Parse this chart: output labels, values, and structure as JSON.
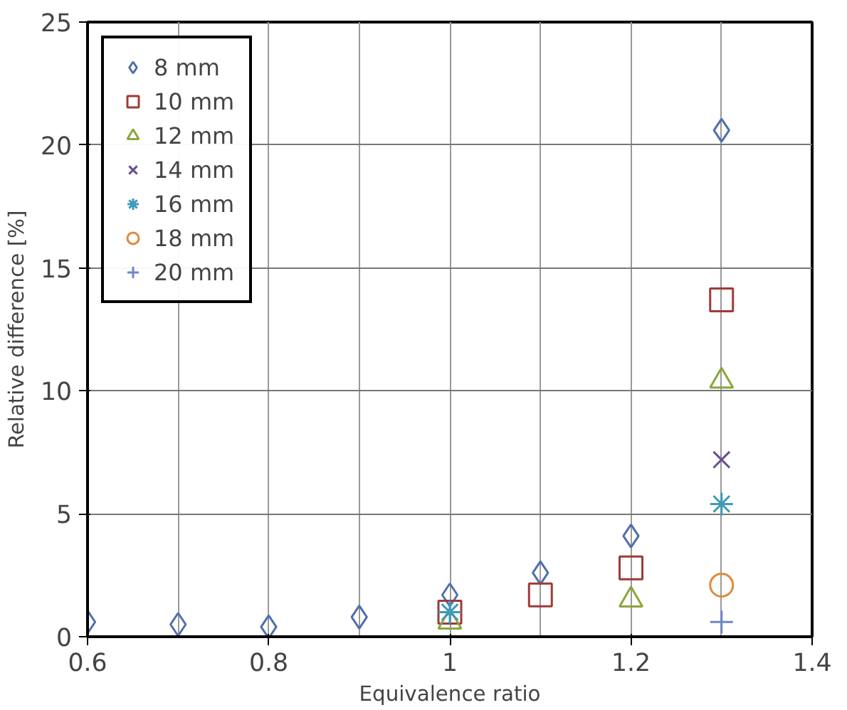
{
  "chart_data": {
    "type": "scatter",
    "xlabel": "Equivalence ratio",
    "ylabel": "Relative difference [%]",
    "xlim": [
      0.6,
      1.4
    ],
    "ylim": [
      0,
      25
    ],
    "xticks": [
      0.6,
      0.8,
      1,
      1.2,
      1.4
    ],
    "yticks": [
      0,
      5,
      10,
      15,
      20,
      25
    ],
    "grid": true,
    "legend": "top left",
    "series": [
      {
        "name": "8 mm",
        "color": "#4f6fad",
        "marker": "diamond",
        "x": [
          0.6,
          0.7,
          0.8,
          0.9,
          1.0,
          1.1,
          1.2,
          1.3
        ],
        "values": [
          0.6,
          0.5,
          0.4,
          0.8,
          1.7,
          2.6,
          4.1,
          20.6
        ]
      },
      {
        "name": "10 mm",
        "color": "#9e3b38",
        "marker": "square",
        "x": [
          1.0,
          1.1,
          1.2,
          1.3
        ],
        "values": [
          1.0,
          1.7,
          2.8,
          13.7
        ]
      },
      {
        "name": "12 mm",
        "color": "#8aa63e",
        "marker": "triangle",
        "x": [
          1.0,
          1.2,
          1.3
        ],
        "values": [
          0.6,
          1.5,
          10.4
        ]
      },
      {
        "name": "14 mm",
        "color": "#6a4f8f",
        "marker": "cross",
        "x": [
          1.3
        ],
        "values": [
          7.2
        ]
      },
      {
        "name": "16 mm",
        "color": "#3f9ab8",
        "marker": "cross",
        "x": [
          1.0,
          1.3
        ],
        "values": [
          1.0,
          5.4
        ]
      },
      {
        "name": "18 mm",
        "color": "#e08a3c",
        "marker": "circle",
        "x": [
          1.3
        ],
        "values": [
          2.1
        ]
      },
      {
        "name": "20 mm",
        "color": "#6f86c8",
        "marker": "cross",
        "x": [
          1.3
        ],
        "values": [
          0.6
        ]
      }
    ]
  }
}
